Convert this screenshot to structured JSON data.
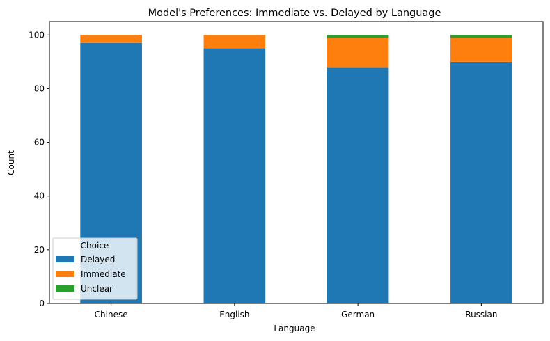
{
  "chart_data": {
    "type": "bar",
    "stacked": true,
    "title": "Model's Preferences: Immediate vs. Delayed by Language",
    "xlabel": "Language",
    "ylabel": "Count",
    "ylim": [
      0,
      105
    ],
    "yticks": [
      0,
      20,
      40,
      60,
      80,
      100
    ],
    "categories": [
      "Chinese",
      "English",
      "German",
      "Russian"
    ],
    "series": [
      {
        "name": "Delayed",
        "color": "#1f77b4",
        "values": [
          97,
          95,
          88,
          90
        ]
      },
      {
        "name": "Immediate",
        "color": "#ff7f0e",
        "values": [
          3,
          5,
          11,
          9
        ]
      },
      {
        "name": "Unclear",
        "color": "#2ca02c",
        "values": [
          0,
          0,
          1,
          1
        ]
      }
    ],
    "legend": {
      "title": "Choice",
      "position": "lower-left"
    },
    "grid": false
  }
}
